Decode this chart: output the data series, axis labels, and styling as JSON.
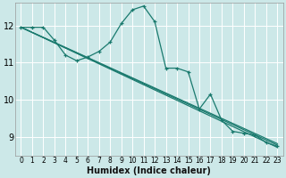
{
  "xlabel": "Humidex (Indice chaleur)",
  "bg_color": "#cce8e8",
  "grid_color": "#ffffff",
  "line_color": "#1a7a6e",
  "xlim": [
    -0.5,
    23.5
  ],
  "ylim": [
    8.5,
    12.6
  ],
  "yticks": [
    9,
    10,
    11,
    12
  ],
  "xticks": [
    0,
    1,
    2,
    3,
    4,
    5,
    6,
    7,
    8,
    9,
    10,
    11,
    12,
    13,
    14,
    15,
    16,
    17,
    18,
    19,
    20,
    21,
    22,
    23
  ],
  "main_x": [
    0,
    1,
    2,
    3,
    4,
    5,
    6,
    7,
    8,
    9,
    10,
    11,
    12,
    13,
    14,
    15,
    16,
    17,
    18,
    19,
    20,
    21,
    22,
    23
  ],
  "main_y": [
    11.95,
    11.95,
    11.95,
    11.6,
    11.2,
    11.05,
    11.15,
    11.3,
    11.55,
    12.05,
    12.42,
    12.52,
    12.1,
    10.85,
    10.85,
    10.75,
    9.75,
    10.15,
    9.45,
    9.15,
    9.1,
    9.05,
    8.85,
    8.75
  ],
  "trend_lines": [
    {
      "x": [
        0,
        23
      ],
      "y": [
        11.95,
        8.72
      ]
    },
    {
      "x": [
        0,
        23
      ],
      "y": [
        11.95,
        8.78
      ]
    },
    {
      "x": [
        0,
        23
      ],
      "y": [
        11.95,
        8.82
      ]
    }
  ]
}
